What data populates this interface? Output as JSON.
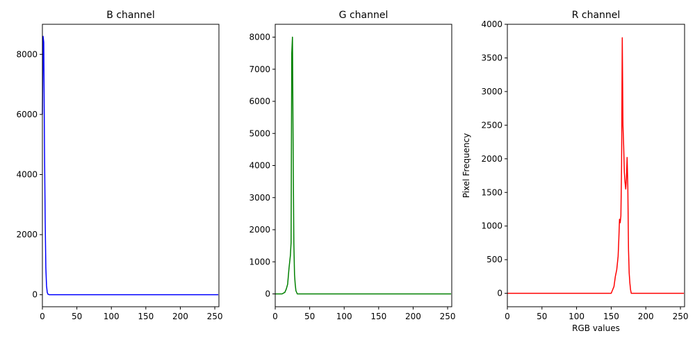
{
  "chart_data": [
    {
      "type": "line",
      "title": "B channel",
      "xlabel": "",
      "ylabel": "",
      "xlim": [
        0,
        256
      ],
      "ylim": [
        -400,
        9000
      ],
      "xticks": [
        0,
        50,
        100,
        150,
        200,
        250
      ],
      "yticks": [
        0,
        2000,
        4000,
        6000,
        8000
      ],
      "color": "#0000ff",
      "series": [
        {
          "x": [
            0,
            1,
            2,
            3,
            4,
            5,
            6,
            7,
            8,
            10,
            15,
            20,
            50,
            100,
            150,
            200,
            255
          ],
          "y": [
            6000,
            8600,
            8400,
            5000,
            2500,
            900,
            300,
            80,
            20,
            0,
            0,
            0,
            0,
            0,
            0,
            0,
            0
          ]
        }
      ]
    },
    {
      "type": "line",
      "title": "G channel",
      "xlabel": "",
      "ylabel": "",
      "xlim": [
        0,
        256
      ],
      "ylim": [
        -400,
        8400
      ],
      "xticks": [
        0,
        50,
        100,
        150,
        200,
        250
      ],
      "yticks": [
        0,
        1000,
        2000,
        3000,
        4000,
        5000,
        6000,
        7000,
        8000
      ],
      "color": "#008000",
      "series": [
        {
          "x": [
            0,
            10,
            14,
            16,
            18,
            20,
            22,
            23,
            24,
            25,
            26,
            27,
            28,
            29,
            30,
            32,
            35,
            50,
            100,
            150,
            200,
            255
          ],
          "y": [
            0,
            0,
            50,
            150,
            300,
            800,
            1200,
            1600,
            7500,
            8000,
            4500,
            1600,
            600,
            300,
            100,
            0,
            0,
            0,
            0,
            0,
            0,
            0
          ]
        }
      ]
    },
    {
      "type": "line",
      "title": "R channel",
      "xlabel": "RGB values",
      "ylabel": "Pixel Frequency",
      "xlim": [
        0,
        256
      ],
      "ylim": [
        -200,
        4000
      ],
      "xticks": [
        0,
        50,
        100,
        150,
        200,
        250
      ],
      "yticks": [
        0,
        500,
        1000,
        1500,
        2000,
        2500,
        3000,
        3500,
        4000
      ],
      "color": "#ff0000",
      "series": [
        {
          "x": [
            0,
            150,
            152,
            154,
            156,
            158,
            160,
            161,
            162,
            163,
            164,
            165,
            166,
            167,
            168,
            169,
            170,
            171,
            172,
            173,
            174,
            175,
            176,
            177,
            178,
            179,
            180,
            182,
            200,
            255
          ],
          "y": [
            0,
            0,
            50,
            100,
            250,
            350,
            550,
            800,
            1100,
            1050,
            1150,
            1900,
            3800,
            2500,
            2200,
            1800,
            1650,
            1550,
            1700,
            2020,
            1600,
            650,
            300,
            150,
            50,
            0,
            0,
            0,
            0,
            0
          ]
        }
      ]
    }
  ]
}
